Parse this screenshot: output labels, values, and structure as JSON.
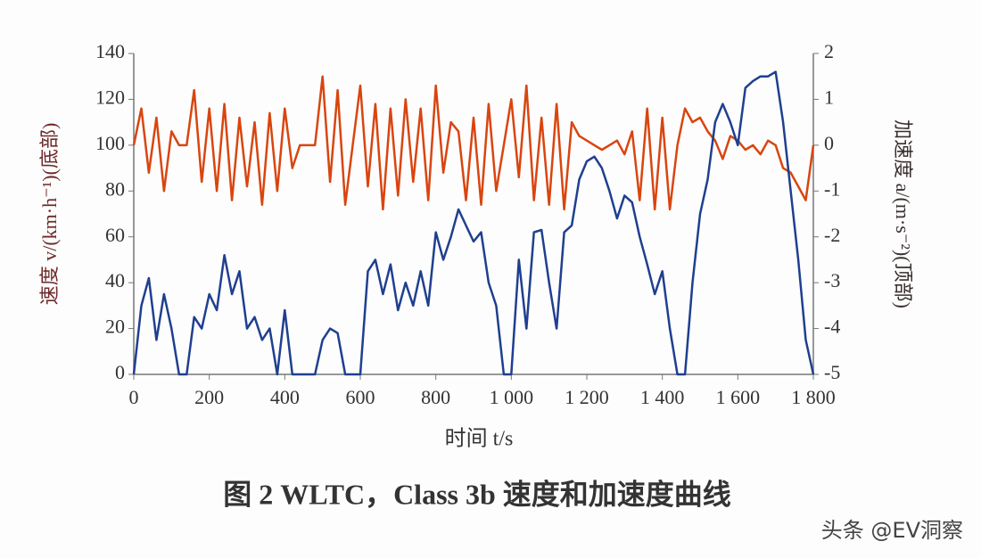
{
  "chart_data": {
    "type": "line",
    "title": "图 2   WLTC，Class 3b 速度和加速度曲线",
    "xlabel": "时间 t/s",
    "ylabel": "速度 v/(km·h⁻¹)(底部)",
    "y2label": "加速度 a/(m·s⁻²)(顶部)",
    "x": [
      0,
      20,
      40,
      60,
      80,
      100,
      120,
      140,
      160,
      180,
      200,
      220,
      240,
      260,
      280,
      300,
      320,
      340,
      360,
      380,
      400,
      420,
      440,
      460,
      480,
      500,
      520,
      540,
      560,
      580,
      600,
      620,
      640,
      660,
      680,
      700,
      720,
      740,
      760,
      780,
      800,
      820,
      840,
      860,
      880,
      900,
      920,
      940,
      960,
      980,
      1000,
      1020,
      1040,
      1060,
      1080,
      1100,
      1120,
      1140,
      1160,
      1180,
      1200,
      1220,
      1240,
      1260,
      1280,
      1300,
      1320,
      1340,
      1360,
      1380,
      1400,
      1420,
      1440,
      1460,
      1480,
      1500,
      1520,
      1540,
      1560,
      1580,
      1600,
      1620,
      1640,
      1660,
      1680,
      1700,
      1720,
      1740,
      1760,
      1780,
      1800
    ],
    "series": [
      {
        "name": "速度",
        "color": "#1f3f8f",
        "values": [
          0,
          30,
          42,
          15,
          35,
          20,
          0,
          0,
          25,
          20,
          35,
          28,
          52,
          35,
          45,
          20,
          25,
          15,
          20,
          0,
          28,
          0,
          0,
          0,
          0,
          15,
          20,
          18,
          0,
          0,
          0,
          45,
          50,
          35,
          48,
          28,
          40,
          30,
          45,
          30,
          62,
          50,
          60,
          72,
          65,
          58,
          62,
          40,
          30,
          0,
          0,
          50,
          20,
          62,
          63,
          40,
          20,
          62,
          65,
          85,
          93,
          95,
          90,
          80,
          68,
          78,
          75,
          60,
          48,
          35,
          45,
          20,
          0,
          0,
          40,
          70,
          85,
          110,
          118,
          110,
          100,
          125,
          128,
          130,
          130,
          132,
          110,
          80,
          50,
          15,
          0
        ]
      },
      {
        "name": "加速度",
        "color": "#d9450f",
        "axis": "y2",
        "values": [
          0,
          0.8,
          -0.6,
          0.6,
          -1.0,
          0.3,
          0,
          0,
          1.2,
          -0.8,
          0.8,
          -1.0,
          0.9,
          -1.2,
          0.6,
          -0.9,
          0.5,
          -1.3,
          0.7,
          -1.0,
          0.8,
          -0.5,
          0,
          0,
          0,
          1.5,
          -0.8,
          1.2,
          -1.3,
          0,
          1.3,
          -0.9,
          0.9,
          -1.4,
          0.8,
          -1.1,
          1.0,
          -0.8,
          0.8,
          -1.2,
          1.3,
          -0.6,
          0.5,
          0.3,
          -1.2,
          0.6,
          -1.3,
          0.9,
          -1.0,
          0,
          1.0,
          -0.7,
          1.3,
          -1.2,
          0.6,
          -1.3,
          0.9,
          -1.4,
          0.5,
          0.2,
          0.1,
          0.0,
          -0.1,
          0.0,
          0.1,
          -0.2,
          0.3,
          -1.2,
          0.8,
          -1.4,
          0.6,
          -1.4,
          0,
          0.8,
          0.5,
          0.6,
          0.3,
          0.1,
          -0.3,
          0.2,
          0.1,
          -0.1,
          0.0,
          -0.2,
          0.1,
          0.0,
          -0.5,
          -0.6,
          -0.9,
          -1.2,
          0
        ]
      }
    ],
    "xlim": [
      0,
      1800
    ],
    "xticks": [
      0,
      200,
      400,
      600,
      800,
      {
        "value": 1000,
        "label": "1 000"
      },
      {
        "value": 1200,
        "label": "1 200"
      },
      {
        "value": 1400,
        "label": "1 400"
      },
      {
        "value": 1600,
        "label": "1 600"
      },
      {
        "value": 1800,
        "label": "1 800"
      }
    ],
    "ylim": [
      0,
      140
    ],
    "yticks": [
      0,
      20,
      40,
      60,
      80,
      100,
      120,
      140
    ],
    "y2lim": [
      -5,
      2
    ],
    "y2ticks": [
      -5,
      -4,
      -3,
      -2,
      -1,
      0,
      1,
      2
    ]
  },
  "watermark": "头条 @EV洞察"
}
